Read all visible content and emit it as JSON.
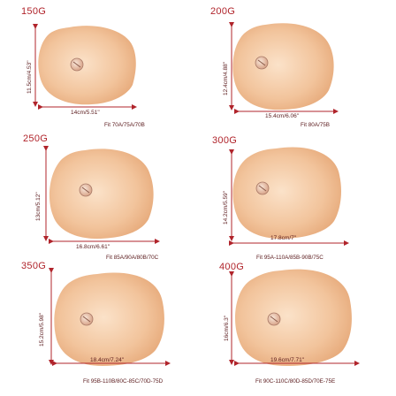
{
  "items": [
    {
      "weight": "150G",
      "width": "14cm/5.51\"",
      "height": "11.5cm/4.53\"",
      "fit": "Fit 70A/75A/70B"
    },
    {
      "weight": "200G",
      "width": "15.4cm/6.06\"",
      "height": "12.4cm/4.88\"",
      "fit": "Fit 80A/75B"
    },
    {
      "weight": "250G",
      "width": "16.8cm/6.61\"",
      "height": "13cm/5.12\"",
      "fit": "Fit 85A/90A/80B/70C"
    },
    {
      "weight": "300G",
      "width": "17.8cm/7\"",
      "height": "14.2cm/5.59\"",
      "fit": "Fit 95A-110A/85B-90B/75C"
    },
    {
      "weight": "350G",
      "width": "18.4cm/7.24\"",
      "height": "15.2cm/5.98\"",
      "fit": "Fit 95B-110B/80C-85C/70D-75D"
    },
    {
      "weight": "400G",
      "width": "19.6cm/7.71\"",
      "height": "16cm/6.3\"",
      "fit": "Fit 90C-110C/80D-85D/70E-75E"
    }
  ],
  "colors": {
    "accent": "#b0242b",
    "skin_light": "#f9d9bc",
    "skin_dark": "#e6a777"
  }
}
